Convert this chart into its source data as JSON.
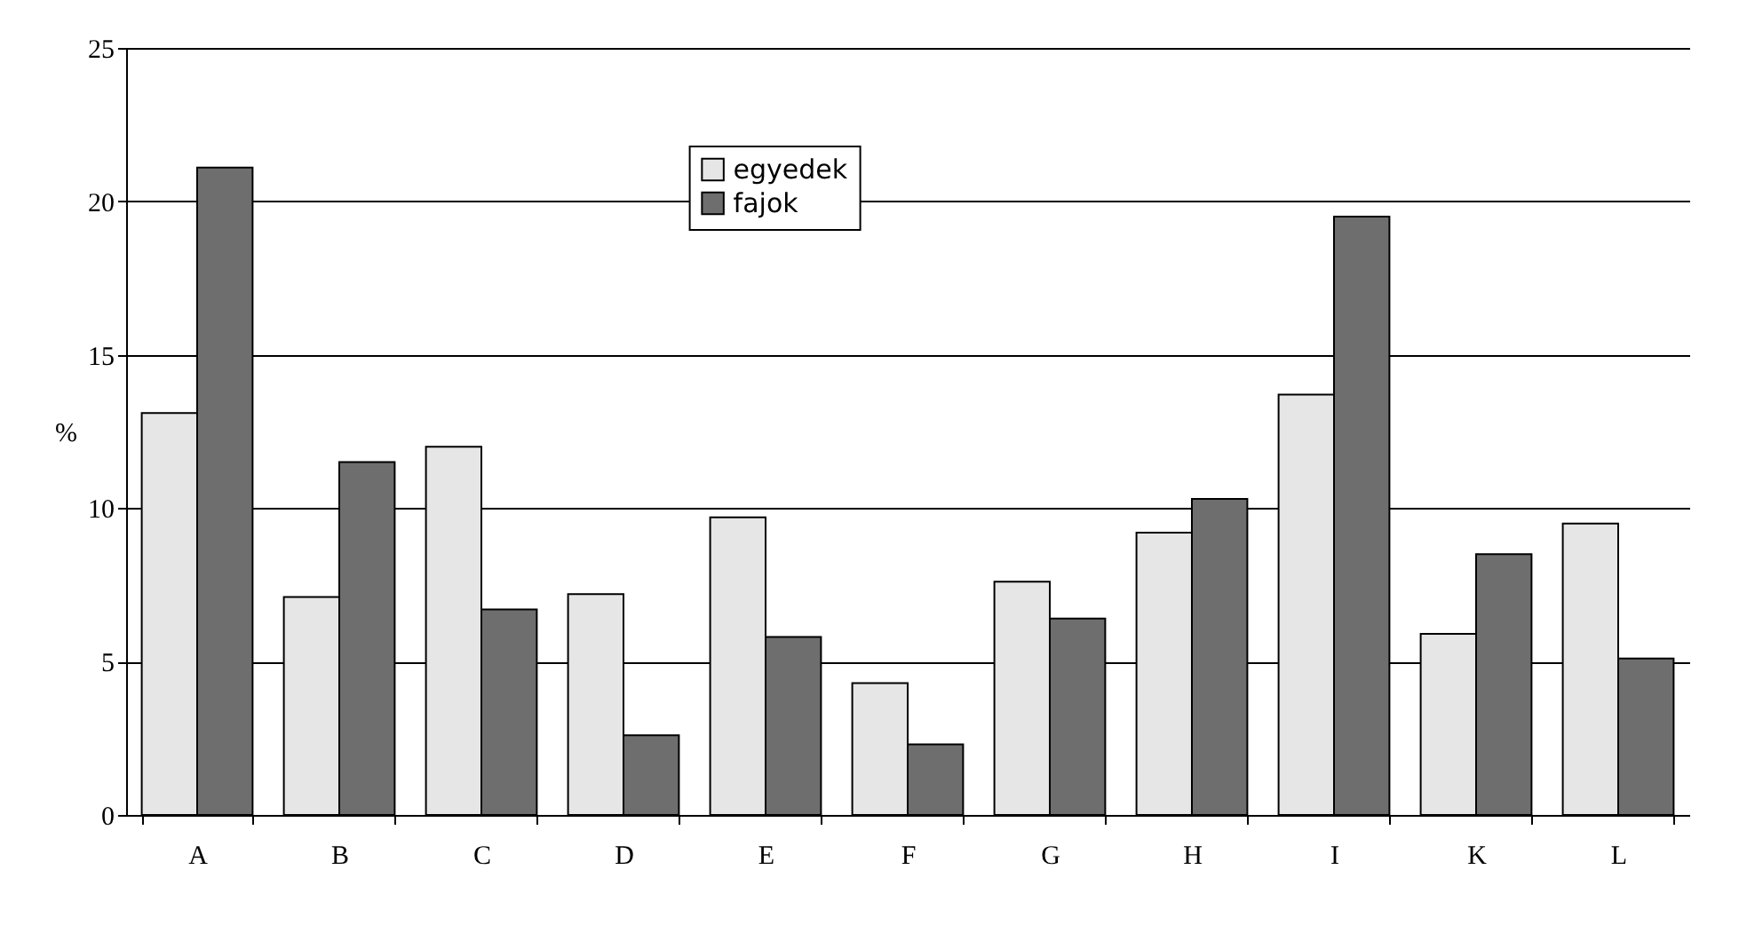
{
  "chart_data": {
    "type": "bar",
    "ylabel": "%",
    "categories": [
      "A",
      "B",
      "C",
      "D",
      "E",
      "F",
      "G",
      "H",
      "I",
      "K",
      "L"
    ],
    "series": [
      {
        "name": "egyedek",
        "color": "#e6e6e6",
        "values": [
          13.1,
          7.1,
          12.0,
          7.2,
          9.7,
          4.3,
          7.6,
          9.2,
          13.7,
          5.9,
          9.5
        ]
      },
      {
        "name": "fajok",
        "color": "#6e6e6e",
        "values": [
          21.1,
          11.5,
          6.7,
          2.6,
          5.8,
          2.3,
          6.4,
          10.3,
          19.5,
          8.5,
          5.1
        ]
      }
    ],
    "ylim": [
      0,
      25
    ],
    "yticks": [
      0,
      5,
      10,
      15,
      20,
      25
    ],
    "grid": "y",
    "legend": "top"
  }
}
